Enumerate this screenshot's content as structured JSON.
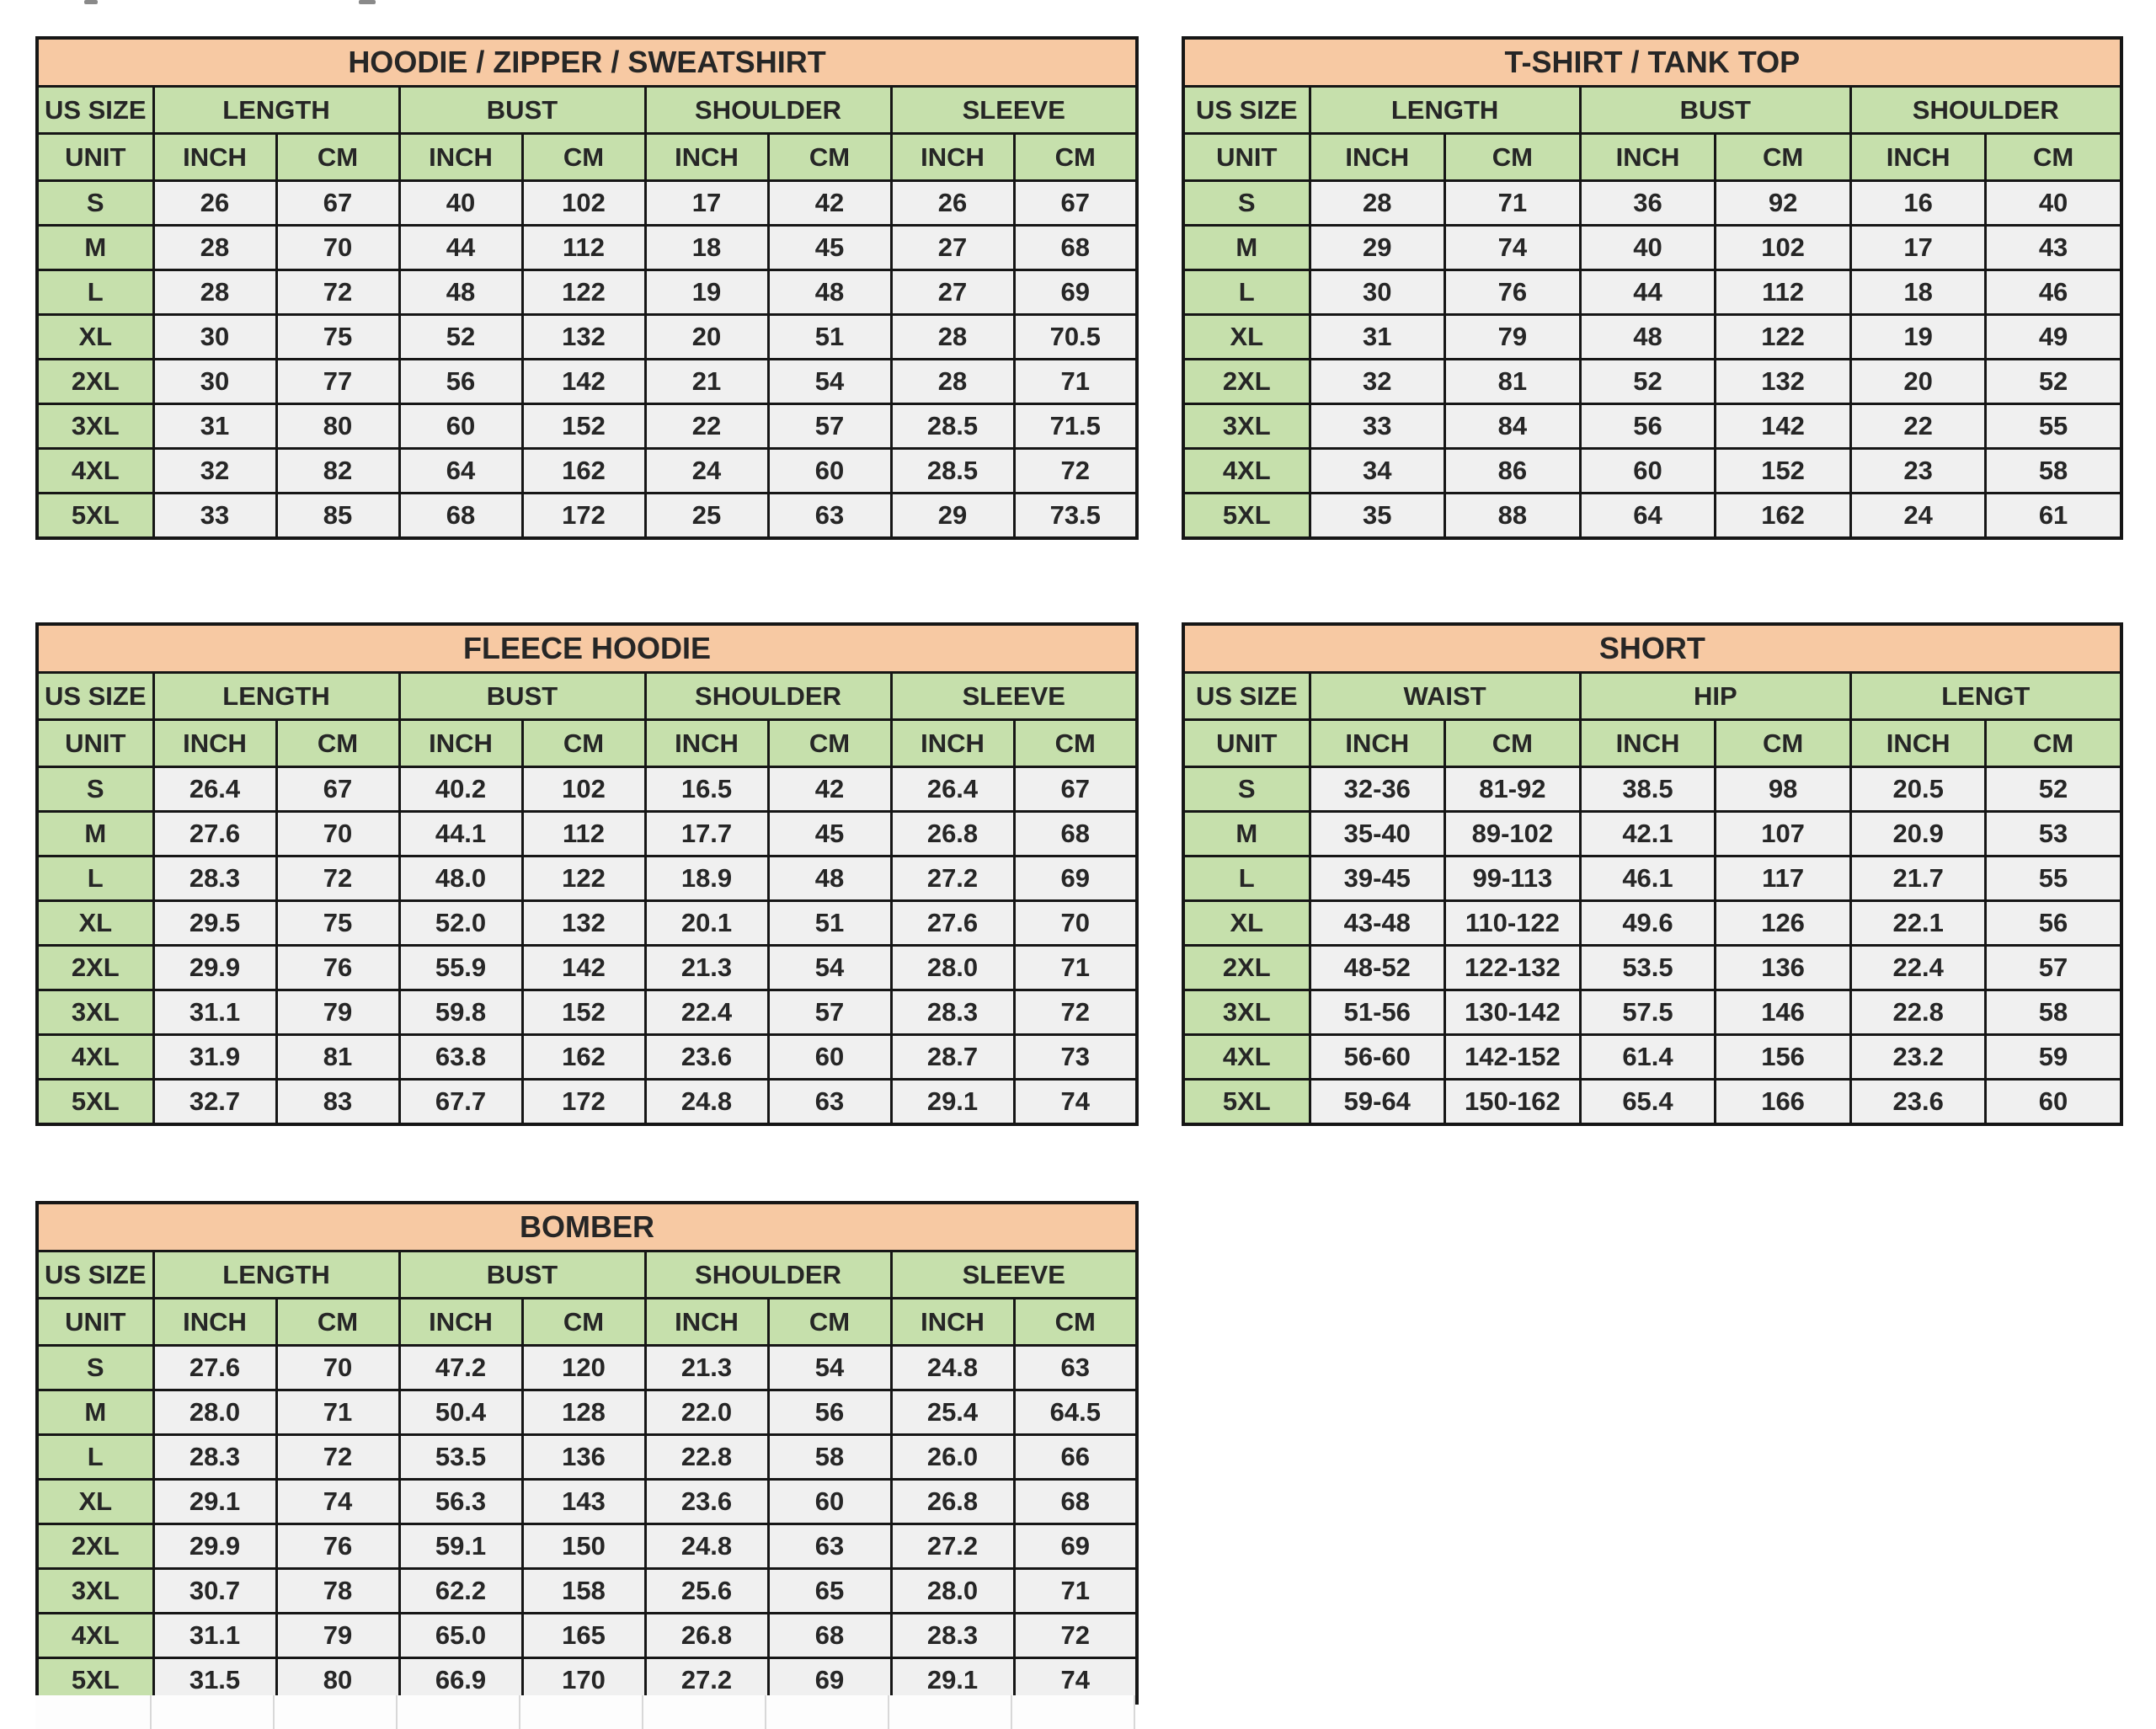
{
  "colors": {
    "title_bg": "#f7c9a3",
    "header_bg": "#c6e0ac",
    "cell_bg": "#f0f0f0",
    "border": "#161616",
    "text": "#262626"
  },
  "labels": {
    "us_size": "US SIZE",
    "unit": "UNIT",
    "inch": "INCH",
    "cm": "CM"
  },
  "sizes": [
    "S",
    "M",
    "L",
    "XL",
    "2XL",
    "3XL",
    "4XL",
    "5XL"
  ],
  "tables": [
    {
      "id": "hoodie",
      "title": "HOODIE / ZIPPER / SWEATSHIRT",
      "groups": [
        "LENGTH",
        "BUST",
        "SHOULDER",
        "SLEEVE"
      ],
      "rows": [
        [
          "26",
          "67",
          "40",
          "102",
          "17",
          "42",
          "26",
          "67"
        ],
        [
          "28",
          "70",
          "44",
          "112",
          "18",
          "45",
          "27",
          "68"
        ],
        [
          "28",
          "72",
          "48",
          "122",
          "19",
          "48",
          "27",
          "69"
        ],
        [
          "30",
          "75",
          "52",
          "132",
          "20",
          "51",
          "28",
          "70.5"
        ],
        [
          "30",
          "77",
          "56",
          "142",
          "21",
          "54",
          "28",
          "71"
        ],
        [
          "31",
          "80",
          "60",
          "152",
          "22",
          "57",
          "28.5",
          "71.5"
        ],
        [
          "32",
          "82",
          "64",
          "162",
          "24",
          "60",
          "28.5",
          "72"
        ],
        [
          "33",
          "85",
          "68",
          "172",
          "25",
          "63",
          "29",
          "73.5"
        ]
      ]
    },
    {
      "id": "tshirt",
      "title": "T-SHIRT / TANK TOP",
      "groups": [
        "LENGTH",
        "BUST",
        "SHOULDER"
      ],
      "rows": [
        [
          "28",
          "71",
          "36",
          "92",
          "16",
          "40"
        ],
        [
          "29",
          "74",
          "40",
          "102",
          "17",
          "43"
        ],
        [
          "30",
          "76",
          "44",
          "112",
          "18",
          "46"
        ],
        [
          "31",
          "79",
          "48",
          "122",
          "19",
          "49"
        ],
        [
          "32",
          "81",
          "52",
          "132",
          "20",
          "52"
        ],
        [
          "33",
          "84",
          "56",
          "142",
          "22",
          "55"
        ],
        [
          "34",
          "86",
          "60",
          "152",
          "23",
          "58"
        ],
        [
          "35",
          "88",
          "64",
          "162",
          "24",
          "61"
        ]
      ]
    },
    {
      "id": "fleece",
      "title": "FLEECE HOODIE",
      "groups": [
        "LENGTH",
        "BUST",
        "SHOULDER",
        "SLEEVE"
      ],
      "rows": [
        [
          "26.4",
          "67",
          "40.2",
          "102",
          "16.5",
          "42",
          "26.4",
          "67"
        ],
        [
          "27.6",
          "70",
          "44.1",
          "112",
          "17.7",
          "45",
          "26.8",
          "68"
        ],
        [
          "28.3",
          "72",
          "48.0",
          "122",
          "18.9",
          "48",
          "27.2",
          "69"
        ],
        [
          "29.5",
          "75",
          "52.0",
          "132",
          "20.1",
          "51",
          "27.6",
          "70"
        ],
        [
          "29.9",
          "76",
          "55.9",
          "142",
          "21.3",
          "54",
          "28.0",
          "71"
        ],
        [
          "31.1",
          "79",
          "59.8",
          "152",
          "22.4",
          "57",
          "28.3",
          "72"
        ],
        [
          "31.9",
          "81",
          "63.8",
          "162",
          "23.6",
          "60",
          "28.7",
          "73"
        ],
        [
          "32.7",
          "83",
          "67.7",
          "172",
          "24.8",
          "63",
          "29.1",
          "74"
        ]
      ]
    },
    {
      "id": "short",
      "title": "SHORT",
      "groups": [
        "WAIST",
        "HIP",
        "LENGT"
      ],
      "rows": [
        [
          "32-36",
          "81-92",
          "38.5",
          "98",
          "20.5",
          "52"
        ],
        [
          "35-40",
          "89-102",
          "42.1",
          "107",
          "20.9",
          "53"
        ],
        [
          "39-45",
          "99-113",
          "46.1",
          "117",
          "21.7",
          "55"
        ],
        [
          "43-48",
          "110-122",
          "49.6",
          "126",
          "22.1",
          "56"
        ],
        [
          "48-52",
          "122-132",
          "53.5",
          "136",
          "22.4",
          "57"
        ],
        [
          "51-56",
          "130-142",
          "57.5",
          "146",
          "22.8",
          "58"
        ],
        [
          "56-60",
          "142-152",
          "61.4",
          "156",
          "23.2",
          "59"
        ],
        [
          "59-64",
          "150-162",
          "65.4",
          "166",
          "23.6",
          "60"
        ]
      ]
    },
    {
      "id": "bomber",
      "title": "BOMBER",
      "groups": [
        "LENGTH",
        "BUST",
        "SHOULDER",
        "SLEEVE"
      ],
      "rows": [
        [
          "27.6",
          "70",
          "47.2",
          "120",
          "21.3",
          "54",
          "24.8",
          "63"
        ],
        [
          "28.0",
          "71",
          "50.4",
          "128",
          "22.0",
          "56",
          "25.4",
          "64.5"
        ],
        [
          "28.3",
          "72",
          "53.5",
          "136",
          "22.8",
          "58",
          "26.0",
          "66"
        ],
        [
          "29.1",
          "74",
          "56.3",
          "143",
          "23.6",
          "60",
          "26.8",
          "68"
        ],
        [
          "29.9",
          "76",
          "59.1",
          "150",
          "24.8",
          "63",
          "27.2",
          "69"
        ],
        [
          "30.7",
          "78",
          "62.2",
          "158",
          "25.6",
          "65",
          "28.0",
          "71"
        ],
        [
          "31.1",
          "79",
          "65.0",
          "165",
          "26.8",
          "68",
          "28.3",
          "72"
        ],
        [
          "31.5",
          "80",
          "66.9",
          "170",
          "27.2",
          "69",
          "29.1",
          "74"
        ]
      ]
    }
  ]
}
